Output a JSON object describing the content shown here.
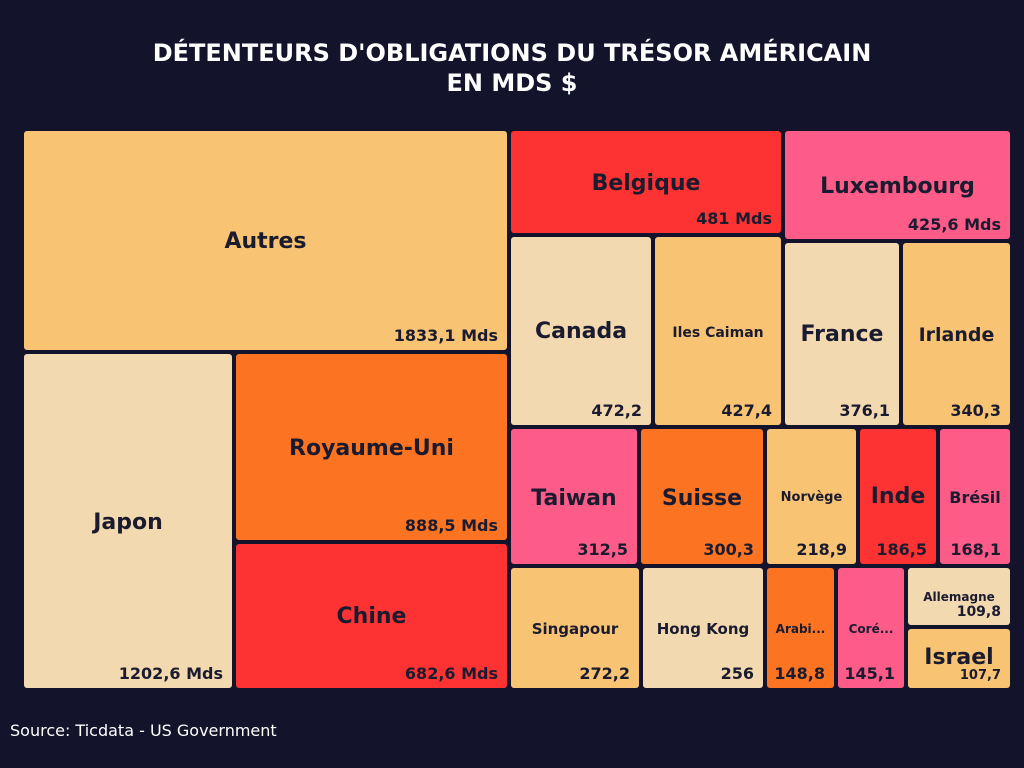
{
  "colors": {
    "background": "#13132b",
    "light_yellow": "#f8c473",
    "beige": "#f3d9b0",
    "orange": "#fc7421",
    "red": "#fd3232",
    "pink": "#fd5b88"
  },
  "source": "Source: Ticdata - US Government",
  "chart_data": {
    "type": "treemap",
    "title_lines": [
      "DÉTENTEURS D'OBLIGATIONS DU TRÉSOR AMÉRICAIN",
      "EN MDS $"
    ],
    "unit": "Mds $",
    "items": [
      {
        "key": "autres",
        "label": "Autres",
        "display_value": "1833,1 Mds",
        "value": 1833.1,
        "color": "light_yellow"
      },
      {
        "key": "japon",
        "label": "Japon",
        "display_value": "1202,6 Mds",
        "value": 1202.6,
        "color": "beige"
      },
      {
        "key": "royaume_uni",
        "label": "Royaume-Uni",
        "display_value": "888,5 Mds",
        "value": 888.5,
        "color": "orange"
      },
      {
        "key": "chine",
        "label": "Chine",
        "display_value": "682,6 Mds",
        "value": 682.6,
        "color": "red"
      },
      {
        "key": "belgique",
        "label": "Belgique",
        "display_value": "481 Mds",
        "value": 481,
        "color": "red"
      },
      {
        "key": "luxembourg",
        "label": "Luxembourg",
        "display_value": "425,6 Mds",
        "value": 425.6,
        "color": "pink"
      },
      {
        "key": "canada",
        "label": "Canada",
        "display_value": "472,2",
        "value": 472.2,
        "color": "beige"
      },
      {
        "key": "iles_caiman",
        "label": "Iles Caiman",
        "display_value": "427,4",
        "value": 427.4,
        "color": "light_yellow"
      },
      {
        "key": "france",
        "label": "France",
        "display_value": "376,1",
        "value": 376.1,
        "color": "beige"
      },
      {
        "key": "irlande",
        "label": "Irlande",
        "display_value": "340,3",
        "value": 340.3,
        "color": "light_yellow"
      },
      {
        "key": "taiwan",
        "label": "Taiwan",
        "display_value": "312,5",
        "value": 312.5,
        "color": "pink"
      },
      {
        "key": "suisse",
        "label": "Suisse",
        "display_value": "300,3",
        "value": 300.3,
        "color": "orange"
      },
      {
        "key": "norvege",
        "label": "Norvège",
        "display_value": "218,9",
        "value": 218.9,
        "color": "light_yellow"
      },
      {
        "key": "inde",
        "label": "Inde",
        "display_value": "186,5",
        "value": 186.5,
        "color": "red"
      },
      {
        "key": "bresil",
        "label": "Brésil",
        "display_value": "168,1",
        "value": 168.1,
        "color": "pink"
      },
      {
        "key": "singapour",
        "label": "Singapour",
        "display_value": "272,2",
        "value": 272.2,
        "color": "light_yellow"
      },
      {
        "key": "hong_kong",
        "label": "Hong Kong",
        "display_value": "256",
        "value": 256,
        "color": "beige"
      },
      {
        "key": "arabie",
        "label": "Arabi...",
        "display_value": "148,8",
        "value": 148.8,
        "color": "orange"
      },
      {
        "key": "coree",
        "label": "Coré...",
        "display_value": "145,1",
        "value": 145.1,
        "color": "pink"
      },
      {
        "key": "allemagne",
        "label": "Allemagne",
        "display_value": "109,8",
        "value": 109.8,
        "color": "beige"
      },
      {
        "key": "israel",
        "label": "Israel",
        "display_value": "107,7",
        "value": 107.7,
        "color": "light_yellow"
      }
    ]
  }
}
